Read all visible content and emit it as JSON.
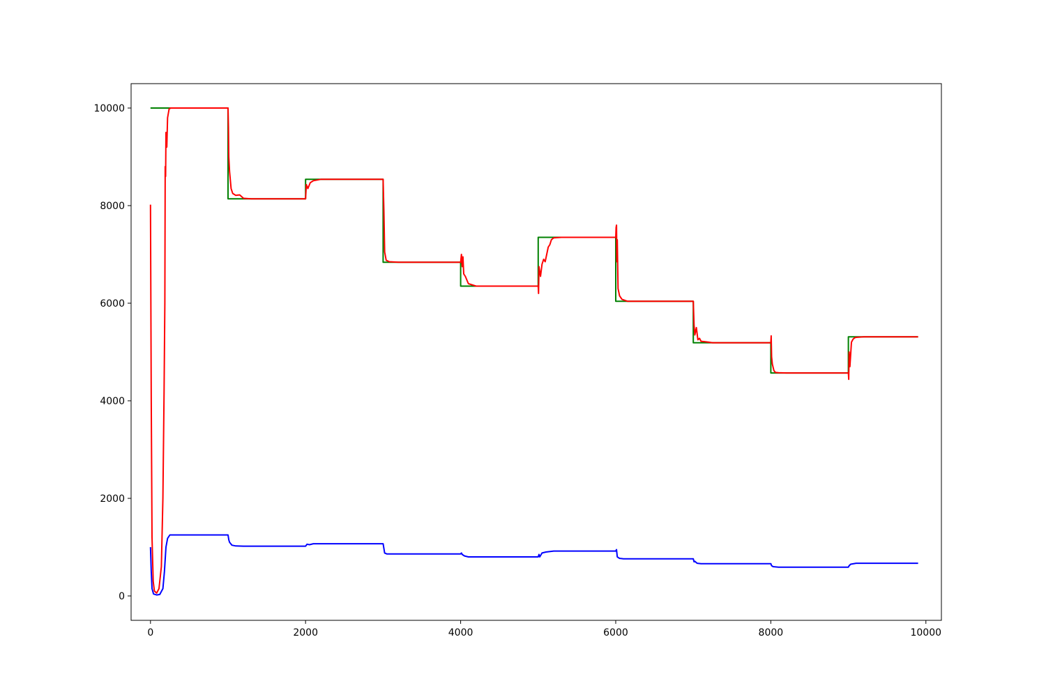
{
  "chart_data": {
    "type": "line",
    "title": "",
    "xlabel": "",
    "ylabel": "",
    "xlim": [
      -250,
      10200
    ],
    "ylim": [
      -500,
      10500
    ],
    "xticks": [
      0,
      2000,
      4000,
      6000,
      8000,
      10000
    ],
    "xtick_labels": [
      "0",
      "2000",
      "4000",
      "6000",
      "8000",
      "10000"
    ],
    "yticks": [
      0,
      2000,
      4000,
      6000,
      8000,
      10000
    ],
    "ytick_labels": [
      "0",
      "2000",
      "4000",
      "6000",
      "8000",
      "10000"
    ],
    "grid": false,
    "legend": "none",
    "series": [
      {
        "color": "#008000",
        "x": [
          0,
          1000,
          1000,
          2000,
          2000,
          3000,
          3000,
          4000,
          4000,
          5000,
          5000,
          6000,
          6000,
          7000,
          7000,
          8000,
          8000,
          9000,
          9000,
          9900
        ],
        "y": [
          10000,
          10000,
          8140,
          8140,
          8540,
          8540,
          6840,
          6840,
          6350,
          6350,
          7350,
          7350,
          6040,
          6040,
          5190,
          5190,
          4570,
          4570,
          5310,
          5310
        ]
      },
      {
        "color": "#ff0000",
        "x": [
          0,
          10,
          20,
          35,
          50,
          80,
          110,
          140,
          160,
          175,
          185,
          190,
          195,
          200,
          210,
          220,
          240,
          260,
          1000,
          1005,
          1010,
          1020,
          1040,
          1060,
          1100,
          1150,
          1200,
          1300,
          2000,
          2010,
          2030,
          2060,
          2100,
          2200,
          2300,
          3000,
          3010,
          3020,
          3040,
          3080,
          3200,
          4000,
          4010,
          4020,
          4030,
          4040,
          4060,
          4100,
          4200,
          5000,
          5005,
          5010,
          5030,
          5050,
          5070,
          5090,
          5110,
          5130,
          5150,
          5170,
          5200,
          5300,
          6000,
          6005,
          6010,
          6015,
          6020,
          6030,
          6050,
          6080,
          6150,
          7000,
          7010,
          7020,
          7040,
          7060,
          7080,
          7100,
          7150,
          7250,
          8000,
          8005,
          8010,
          8020,
          8040,
          8060,
          8100,
          8200,
          9000,
          9005,
          9010,
          9020,
          9040,
          9060,
          9080,
          9100,
          9200,
          9900
        ],
        "y": [
          8020,
          4000,
          1200,
          300,
          100,
          60,
          150,
          600,
          2000,
          4200,
          6000,
          8800,
          8600,
          9500,
          9200,
          9800,
          9980,
          10000,
          10000,
          9600,
          9000,
          8700,
          8350,
          8250,
          8210,
          8220,
          8150,
          8140,
          8140,
          8430,
          8350,
          8470,
          8510,
          8540,
          8540,
          8540,
          7900,
          7050,
          6880,
          6850,
          6840,
          6840,
          7000,
          6750,
          6950,
          6600,
          6550,
          6400,
          6350,
          6350,
          6200,
          6750,
          6550,
          6800,
          6900,
          6850,
          7000,
          7150,
          7200,
          7300,
          7340,
          7350,
          7350,
          7550,
          7600,
          6850,
          7300,
          6300,
          6150,
          6080,
          6040,
          6040,
          5550,
          5350,
          5500,
          5250,
          5280,
          5220,
          5210,
          5190,
          5190,
          5330,
          4900,
          4750,
          4620,
          4580,
          4575,
          4570,
          4570,
          4440,
          5000,
          4700,
          5200,
          5260,
          5290,
          5300,
          5310,
          5310
        ]
      },
      {
        "color": "#0000ff",
        "x": [
          0,
          10,
          20,
          40,
          80,
          120,
          160,
          180,
          200,
          220,
          250,
          1000,
          1010,
          1020,
          1050,
          1100,
          1200,
          2000,
          2020,
          2050,
          2100,
          3000,
          3020,
          3050,
          3100,
          4000,
          4010,
          4020,
          4050,
          4100,
          5000,
          5010,
          5020,
          5050,
          5100,
          5200,
          6000,
          6010,
          6020,
          6050,
          6100,
          7000,
          7010,
          7020,
          7050,
          7100,
          8000,
          8010,
          8030,
          8100,
          9000,
          9010,
          9030,
          9100,
          9900
        ],
        "y": [
          1000,
          500,
          150,
          40,
          20,
          30,
          150,
          500,
          1000,
          1180,
          1250,
          1250,
          1150,
          1100,
          1040,
          1025,
          1020,
          1020,
          1060,
          1050,
          1070,
          1070,
          880,
          860,
          860,
          860,
          880,
          850,
          820,
          800,
          800,
          850,
          800,
          880,
          900,
          920,
          920,
          950,
          800,
          770,
          760,
          760,
          700,
          710,
          670,
          660,
          660,
          620,
          600,
          590,
          590,
          620,
          650,
          670,
          670
        ]
      }
    ]
  }
}
